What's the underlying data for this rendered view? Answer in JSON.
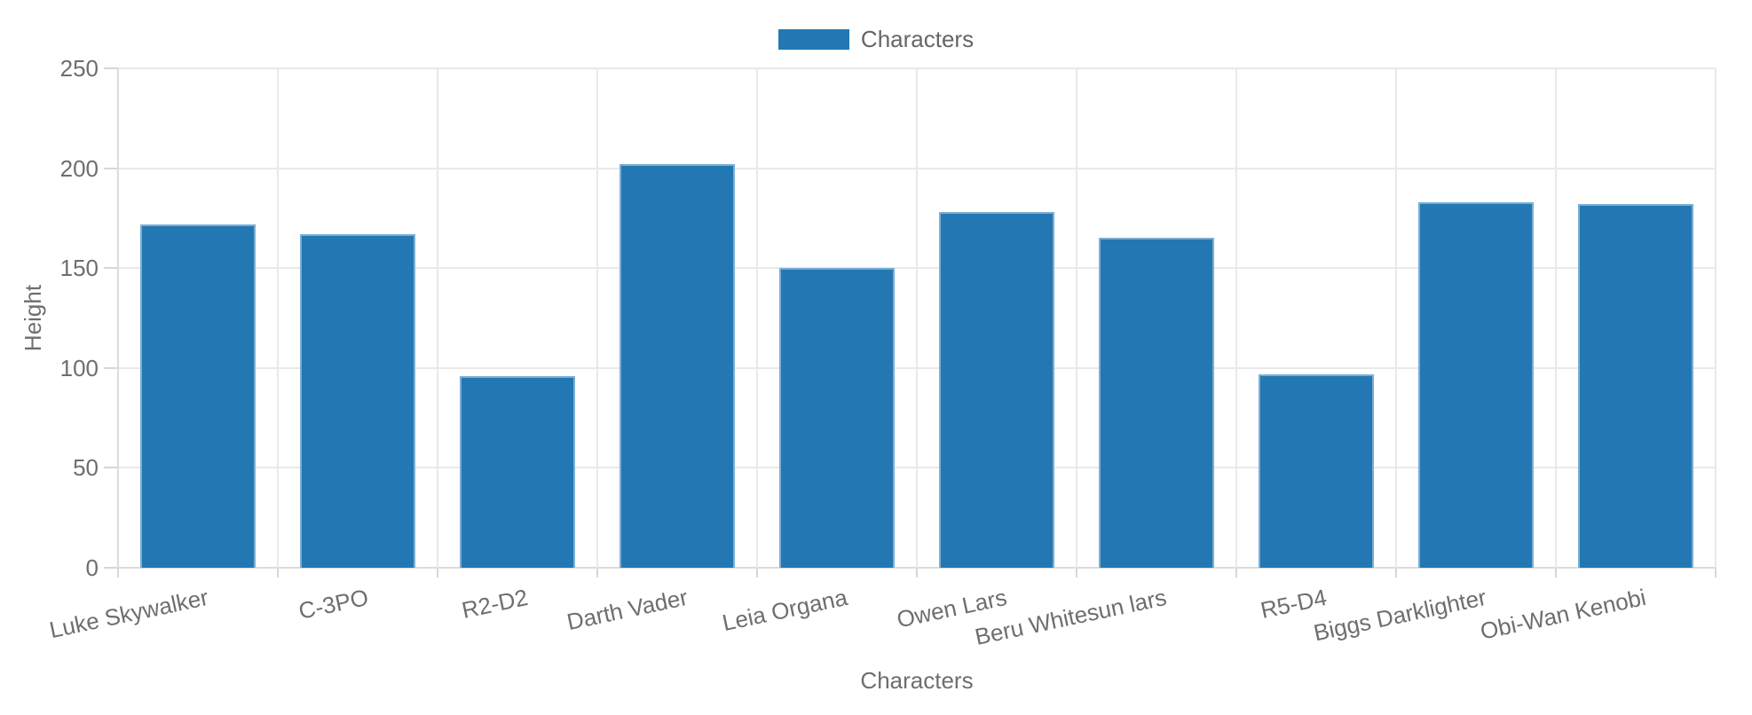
{
  "chart_data": {
    "type": "bar",
    "title": "",
    "categories": [
      "Luke Skywalker",
      "C-3PO",
      "R2-D2",
      "Darth Vader",
      "Leia Organa",
      "Owen Lars",
      "Beru Whitesun lars",
      "R5-D4",
      "Biggs Darklighter",
      "Obi-Wan Kenobi"
    ],
    "series": [
      {
        "name": "Characters",
        "values": [
          172,
          167,
          96,
          202,
          150,
          178,
          165,
          97,
          183,
          182
        ]
      }
    ],
    "xlabel": "Characters",
    "ylabel": "Height",
    "ylim": [
      0,
      250
    ],
    "yticks": [
      0,
      50,
      100,
      150,
      200,
      250
    ],
    "grid": true,
    "legend_position": "top-center",
    "x_tick_rotation_deg": -12,
    "colors": {
      "bar": "#2378b4",
      "grid": "#e9e9e9",
      "axis": "#d7d7d7",
      "axis_text": "#6e6e6e",
      "legend_text": "#666666"
    }
  }
}
